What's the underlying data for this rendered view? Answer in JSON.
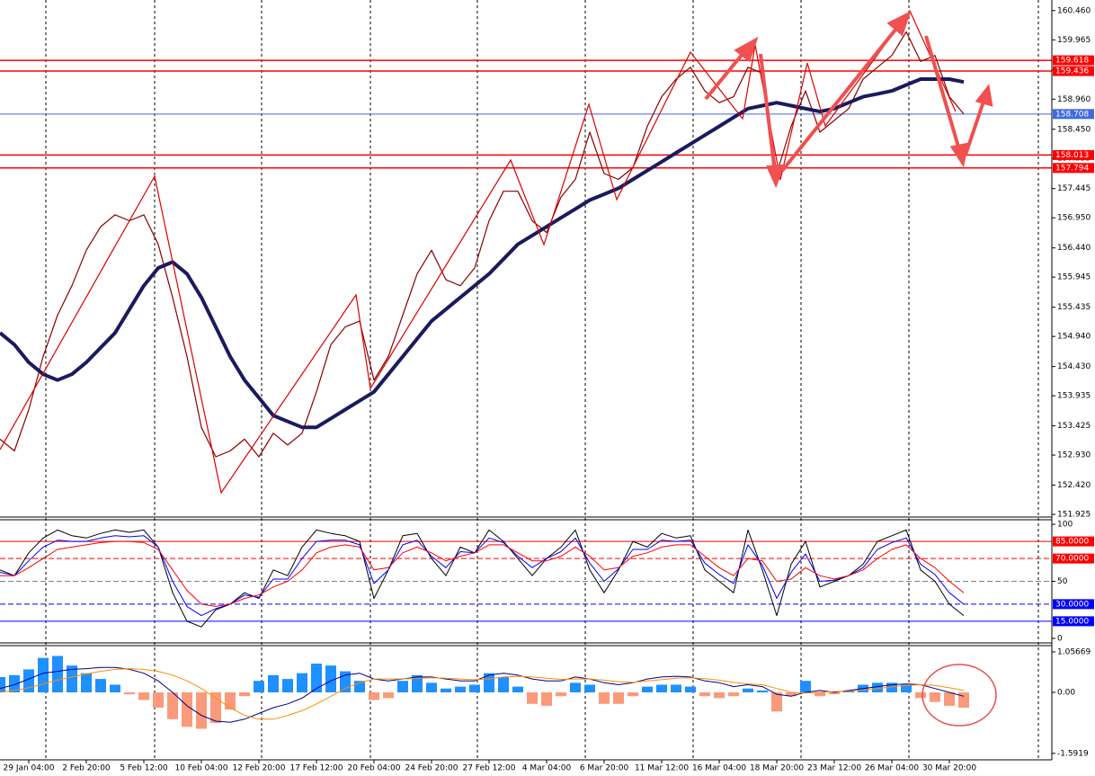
{
  "chart_data": [
    {
      "type": "line",
      "panel": "price",
      "categories": [
        null,
        null,
        "29 Jan 04:00",
        null,
        null,
        null,
        "2 Feb 20:00",
        null,
        null,
        null,
        "5 Feb 12:00",
        null,
        null,
        null,
        "10 Feb 04:00",
        null,
        null,
        null,
        "12 Feb 20:00",
        null,
        null,
        null,
        "17 Feb 12:00",
        null,
        null,
        null,
        "20 Feb 04:00",
        null,
        null,
        null,
        "24 Feb 20:00",
        null,
        null,
        null,
        "27 Feb 12:00",
        null,
        null,
        null,
        "4 Mar 04:00",
        null,
        null,
        null,
        "6 Mar 20:00",
        null,
        null,
        null,
        "11 Mar 12:00",
        null,
        null,
        null,
        "16 Mar 04:00",
        null,
        null,
        null,
        "18 Mar 20:00",
        null,
        null,
        null,
        "23 Mar 12:00",
        null,
        null,
        null,
        "26 Mar 04:00",
        null,
        null,
        null,
        "30 Mar 20:00",
        null
      ],
      "series": [
        {
          "color": "#8b0000",
          "width": 1.2,
          "values": [
            153.2,
            153.0,
            153.7,
            154.6,
            155.3,
            155.8,
            156.4,
            156.8,
            157.0,
            156.9,
            157.0,
            156.5,
            155.6,
            154.6,
            153.4,
            152.9,
            153.0,
            153.2,
            152.9,
            153.3,
            153.1,
            153.3,
            154.0,
            154.8,
            155.1,
            155.2,
            154.2,
            154.6,
            155.3,
            156.0,
            156.4,
            155.9,
            155.8,
            156.1,
            156.9,
            157.4,
            157.4,
            156.9,
            156.7,
            157.3,
            157.6,
            158.4,
            157.7,
            157.6,
            157.8,
            158.5,
            159.0,
            159.3,
            159.5,
            159.1,
            158.9,
            159.0,
            159.5,
            159.4,
            157.7,
            158.5,
            159.1,
            158.4,
            158.6,
            158.8,
            159.3,
            159.5,
            159.7,
            160.1,
            159.6,
            159.7,
            159.0,
            158.71
          ]
        },
        {
          "color": "#1a1a5e",
          "width": 4,
          "values": [
            155.0,
            154.8,
            154.5,
            154.3,
            154.2,
            154.3,
            154.5,
            154.75,
            155.0,
            155.4,
            155.8,
            156.1,
            156.2,
            156.0,
            155.6,
            155.1,
            154.6,
            154.2,
            153.9,
            153.6,
            153.5,
            153.4,
            153.4,
            153.55,
            153.7,
            153.85,
            154.0,
            154.3,
            154.6,
            154.9,
            155.2,
            155.4,
            155.6,
            155.8,
            156.0,
            156.25,
            156.5,
            156.65,
            156.8,
            156.95,
            157.1,
            157.25,
            157.35,
            157.45,
            157.6,
            157.75,
            157.9,
            158.05,
            158.2,
            158.35,
            158.5,
            158.65,
            158.8,
            158.85,
            158.9,
            158.85,
            158.8,
            158.75,
            158.8,
            158.9,
            159.0,
            159.05,
            159.1,
            159.2,
            159.3,
            159.3,
            159.3,
            159.25
          ]
        }
      ],
      "ylim": [
        151.88,
        160.64
      ],
      "yticks": [
        {
          "value": 160.46,
          "label": "160.460"
        },
        {
          "value": 159.965,
          "label": "159.965"
        },
        {
          "value": 159.455,
          "label": "159.455"
        },
        {
          "value": 158.96,
          "label": "158.960"
        },
        {
          "value": 158.45,
          "label": "158.450"
        },
        {
          "value": 157.955,
          "label": "157.955"
        },
        {
          "value": 157.445,
          "label": "157.445"
        },
        {
          "value": 156.95,
          "label": "156.950"
        },
        {
          "value": 156.44,
          "label": "156.440"
        },
        {
          "value": 155.945,
          "label": "155.945"
        },
        {
          "value": 155.435,
          "label": "155.435"
        },
        {
          "value": 154.94,
          "label": "154.940"
        },
        {
          "value": 154.43,
          "label": "154.430"
        },
        {
          "value": 153.935,
          "label": "153.935"
        },
        {
          "value": 153.425,
          "label": "153.425"
        },
        {
          "value": 152.93,
          "label": "152.930"
        },
        {
          "value": 152.42,
          "label": "152.420"
        },
        {
          "value": 151.925,
          "label": "151.925"
        }
      ],
      "levels": [
        {
          "value": 159.618,
          "color": "#ff0000"
        },
        {
          "value": 159.436,
          "color": "#ff0000"
        },
        {
          "value": 158.708,
          "color": "#4169e1"
        },
        {
          "value": 158.013,
          "color": "#ff0000"
        },
        {
          "value": 157.794,
          "color": "#ff0000"
        }
      ]
    },
    {
      "type": "line",
      "panel": "oscillator",
      "series": [
        {
          "color": "#000000",
          "values": [
            60,
            55,
            75,
            88,
            95,
            90,
            88,
            92,
            95,
            93,
            95,
            80,
            40,
            15,
            10,
            25,
            30,
            40,
            35,
            60,
            55,
            80,
            95,
            92,
            90,
            85,
            35,
            60,
            90,
            92,
            70,
            55,
            80,
            75,
            95,
            85,
            70,
            55,
            70,
            80,
            95,
            60,
            40,
            60,
            85,
            80,
            92,
            88,
            90,
            60,
            50,
            40,
            95,
            60,
            20,
            65,
            85,
            45,
            50,
            55,
            65,
            85,
            90,
            95,
            60,
            50,
            30,
            20
          ]
        },
        {
          "color": "#0000ff",
          "values": [
            58,
            55,
            68,
            80,
            86,
            85,
            85,
            88,
            90,
            89,
            90,
            80,
            50,
            28,
            20,
            26,
            30,
            38,
            36,
            52,
            52,
            70,
            85,
            86,
            86,
            82,
            48,
            60,
            82,
            86,
            72,
            62,
            76,
            75,
            88,
            84,
            72,
            62,
            70,
            76,
            88,
            66,
            50,
            61,
            78,
            78,
            86,
            85,
            86,
            66,
            56,
            48,
            82,
            64,
            35,
            58,
            74,
            50,
            51,
            55,
            62,
            78,
            84,
            88,
            65,
            56,
            40,
            30
          ]
        },
        {
          "color": "#ff0000",
          "values": [
            55,
            55,
            62,
            70,
            78,
            80,
            82,
            84,
            85,
            85,
            84,
            78,
            60,
            42,
            30,
            28,
            30,
            35,
            38,
            45,
            50,
            60,
            75,
            80,
            82,
            80,
            60,
            62,
            75,
            80,
            75,
            68,
            72,
            75,
            82,
            82,
            75,
            68,
            68,
            72,
            80,
            72,
            60,
            62,
            72,
            75,
            80,
            82,
            82,
            72,
            62,
            55,
            70,
            68,
            50,
            52,
            62,
            55,
            52,
            55,
            60,
            70,
            78,
            82,
            70,
            62,
            50,
            40
          ]
        }
      ],
      "ylim": [
        -4,
        104
      ],
      "yticks": [
        100,
        50,
        0
      ],
      "levels": [
        {
          "value": 85,
          "label": "85.0000",
          "color": "#ff0000",
          "dash": false
        },
        {
          "value": 70,
          "label": "70.0000",
          "color": "#ff0000",
          "dash": true
        },
        {
          "value": 50,
          "color": "#808080",
          "dash": true
        },
        {
          "value": 30,
          "label": "30.0000",
          "color": "#0000ff",
          "dash": true
        },
        {
          "value": 15,
          "label": "15.0000",
          "color": "#0000ff",
          "dash": false
        }
      ]
    },
    {
      "type": "macd",
      "panel": "macd",
      "histogram": {
        "color": "#1e90ff",
        "negative_color": "#fa9a7a",
        "values": [
          0.4,
          0.45,
          0.6,
          0.9,
          0.95,
          0.7,
          0.5,
          0.35,
          0.2,
          -0.05,
          -0.2,
          -0.4,
          -0.7,
          -0.9,
          -0.95,
          -0.8,
          -0.45,
          -0.1,
          0.3,
          0.45,
          0.35,
          0.5,
          0.75,
          0.7,
          0.55,
          0.3,
          -0.2,
          -0.15,
          0.3,
          0.45,
          0.25,
          0.1,
          0.15,
          0.2,
          0.5,
          0.4,
          0.15,
          -0.3,
          -0.35,
          -0.1,
          0.25,
          0.2,
          -0.3,
          -0.3,
          -0.1,
          0.15,
          0.2,
          0.2,
          0.15,
          -0.1,
          -0.15,
          -0.1,
          0.1,
          0.05,
          -0.5,
          -0.1,
          0.3,
          -0.1,
          -0.05,
          0.05,
          0.2,
          0.25,
          0.25,
          0.2,
          -0.15,
          -0.25,
          -0.35,
          -0.4
        ]
      },
      "series": [
        {
          "color": "#00008b",
          "values": [
            0.1,
            0.2,
            0.35,
            0.5,
            0.55,
            0.6,
            0.62,
            0.65,
            0.65,
            0.6,
            0.5,
            0.3,
            0.0,
            -0.35,
            -0.6,
            -0.75,
            -0.78,
            -0.7,
            -0.55,
            -0.4,
            -0.3,
            -0.15,
            0.1,
            0.3,
            0.45,
            0.5,
            0.35,
            0.3,
            0.35,
            0.4,
            0.4,
            0.35,
            0.3,
            0.3,
            0.45,
            0.5,
            0.45,
            0.35,
            0.3,
            0.3,
            0.4,
            0.35,
            0.25,
            0.2,
            0.25,
            0.35,
            0.4,
            0.42,
            0.4,
            0.3,
            0.25,
            0.15,
            0.2,
            0.15,
            -0.05,
            -0.1,
            0.0,
            0.05,
            0.0,
            0.05,
            0.1,
            0.15,
            0.2,
            0.22,
            0.2,
            0.1,
            0.0,
            -0.1
          ]
        },
        {
          "color": "#ff8c00",
          "values": [
            0.0,
            0.05,
            0.12,
            0.22,
            0.32,
            0.4,
            0.48,
            0.55,
            0.6,
            0.62,
            0.6,
            0.55,
            0.45,
            0.3,
            0.1,
            -0.15,
            -0.4,
            -0.6,
            -0.7,
            -0.7,
            -0.6,
            -0.48,
            -0.3,
            -0.1,
            0.1,
            0.25,
            0.35,
            0.35,
            0.35,
            0.37,
            0.38,
            0.37,
            0.35,
            0.33,
            0.35,
            0.4,
            0.42,
            0.4,
            0.37,
            0.34,
            0.35,
            0.35,
            0.32,
            0.28,
            0.26,
            0.3,
            0.33,
            0.37,
            0.38,
            0.36,
            0.32,
            0.26,
            0.22,
            0.2,
            0.1,
            0.0,
            -0.02,
            0.0,
            0.02,
            0.03,
            0.06,
            0.1,
            0.14,
            0.18,
            0.2,
            0.18,
            0.12,
            0.05
          ]
        }
      ],
      "ylim": [
        -1.76,
        1.22
      ],
      "yticks": [
        1.05669,
        {
          "value": 0,
          "label": "0.00"
        },
        -1.5919
      ]
    }
  ]
}
